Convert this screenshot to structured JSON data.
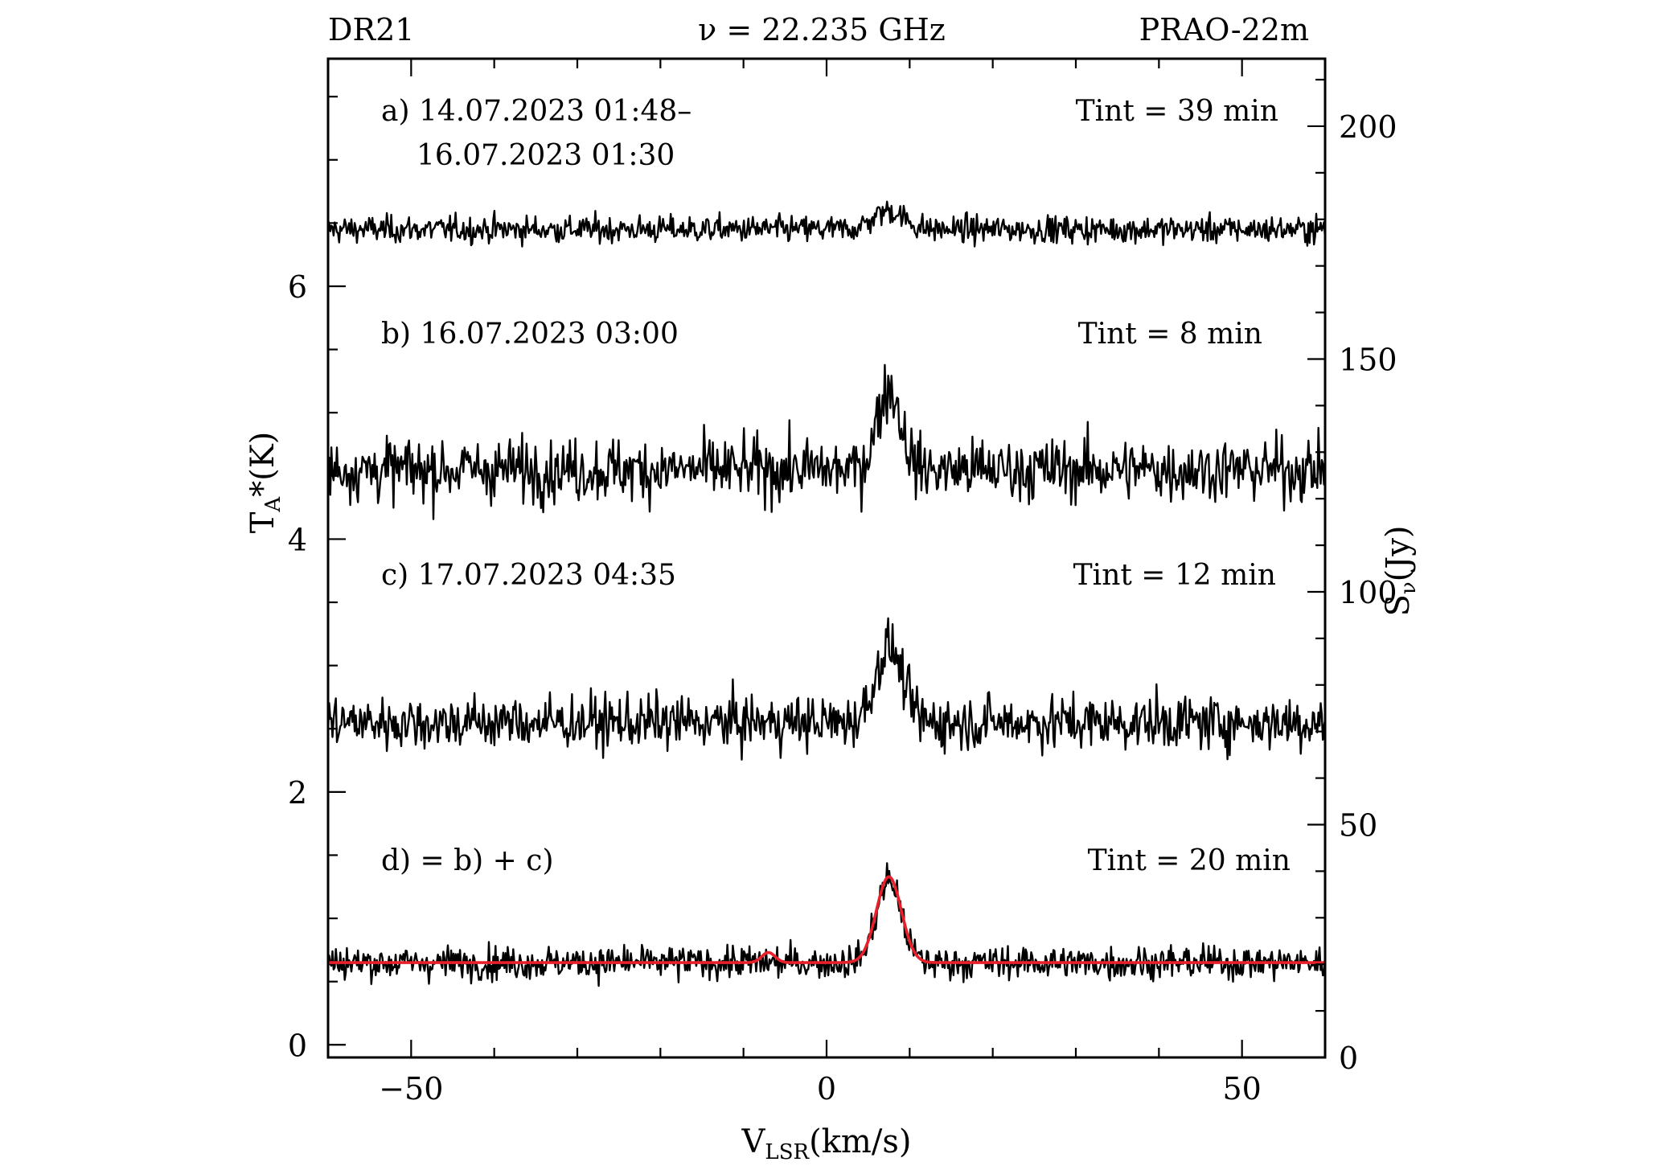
{
  "header": {
    "source": "DR21",
    "frequency": "ν = 22.235 GHz",
    "telescope": "PRAO-22m"
  },
  "chart_data": {
    "type": "line",
    "xlabel": "V",
    "xlabel_sub": "LSR",
    "xlabel_unit": "(km/s)",
    "ylabel_left": "T",
    "ylabel_left_sub": "A",
    "ylabel_left_unit": "*(K)",
    "ylabel_right": "S",
    "ylabel_right_sub": "ν",
    "ylabel_right_unit": "(Jy)",
    "xlim": [
      -60,
      60
    ],
    "ylim_left": [
      -0.1,
      7.8
    ],
    "ylim_right_jy": [
      0,
      214.5
    ],
    "x_ticks": [
      -50,
      0,
      50
    ],
    "x_tick_labels": [
      "−50",
      "0",
      "50"
    ],
    "y_left_ticks": [
      0,
      2,
      4,
      6
    ],
    "y_left_tick_labels": [
      "0",
      "2",
      "4",
      "6"
    ],
    "y_right_ticks": [
      0,
      50,
      100,
      150,
      200
    ],
    "y_right_tick_labels": [
      "0",
      "50",
      "100",
      "150",
      "200"
    ],
    "k_to_jy": 27.5,
    "velocity_range": [
      -60,
      60
    ],
    "series": [
      {
        "id": "a",
        "label_line1": "a) 14.07.2023 01:48–",
        "label_line2": "16.07.2023 01:30",
        "tint": "Tint = 39 min",
        "baseline_K": 6.45,
        "noise_K": 0.09,
        "peak_K": 0.15,
        "peak_vlsr": 7.5,
        "peak_width": 1.8,
        "color": "#000000"
      },
      {
        "id": "b",
        "label_line1": "b) 16.07.2023 03:00",
        "tint": "Tint  = 8 min",
        "baseline_K": 4.55,
        "noise_K": 0.21,
        "peak_K": 0.65,
        "peak_vlsr": 7.5,
        "peak_width": 1.4,
        "color": "#000000"
      },
      {
        "id": "c",
        "label_line1": "c) 17.07.2023 04:35",
        "tint": "Tint = 12 min",
        "baseline_K": 2.55,
        "noise_K": 0.18,
        "peak_K": 0.6,
        "peak_vlsr": 7.5,
        "peak_width": 1.6,
        "color": "#000000"
      },
      {
        "id": "d",
        "label_line1": "d) = b) + c)",
        "tint": "Tint  = 20 min",
        "baseline_K": 0.65,
        "noise_K": 0.11,
        "peak_K": 0.65,
        "peak_vlsr": 7.5,
        "peak_width": 1.5,
        "color": "#000000"
      }
    ],
    "fit": {
      "series": "d",
      "baseline_K": 0.65,
      "components": [
        {
          "vlsr": 7.5,
          "amp_K": 0.68,
          "width": 1.5
        },
        {
          "vlsr": -7.0,
          "amp_K": 0.08,
          "width": 0.8
        }
      ],
      "color": "#e8202a"
    }
  }
}
